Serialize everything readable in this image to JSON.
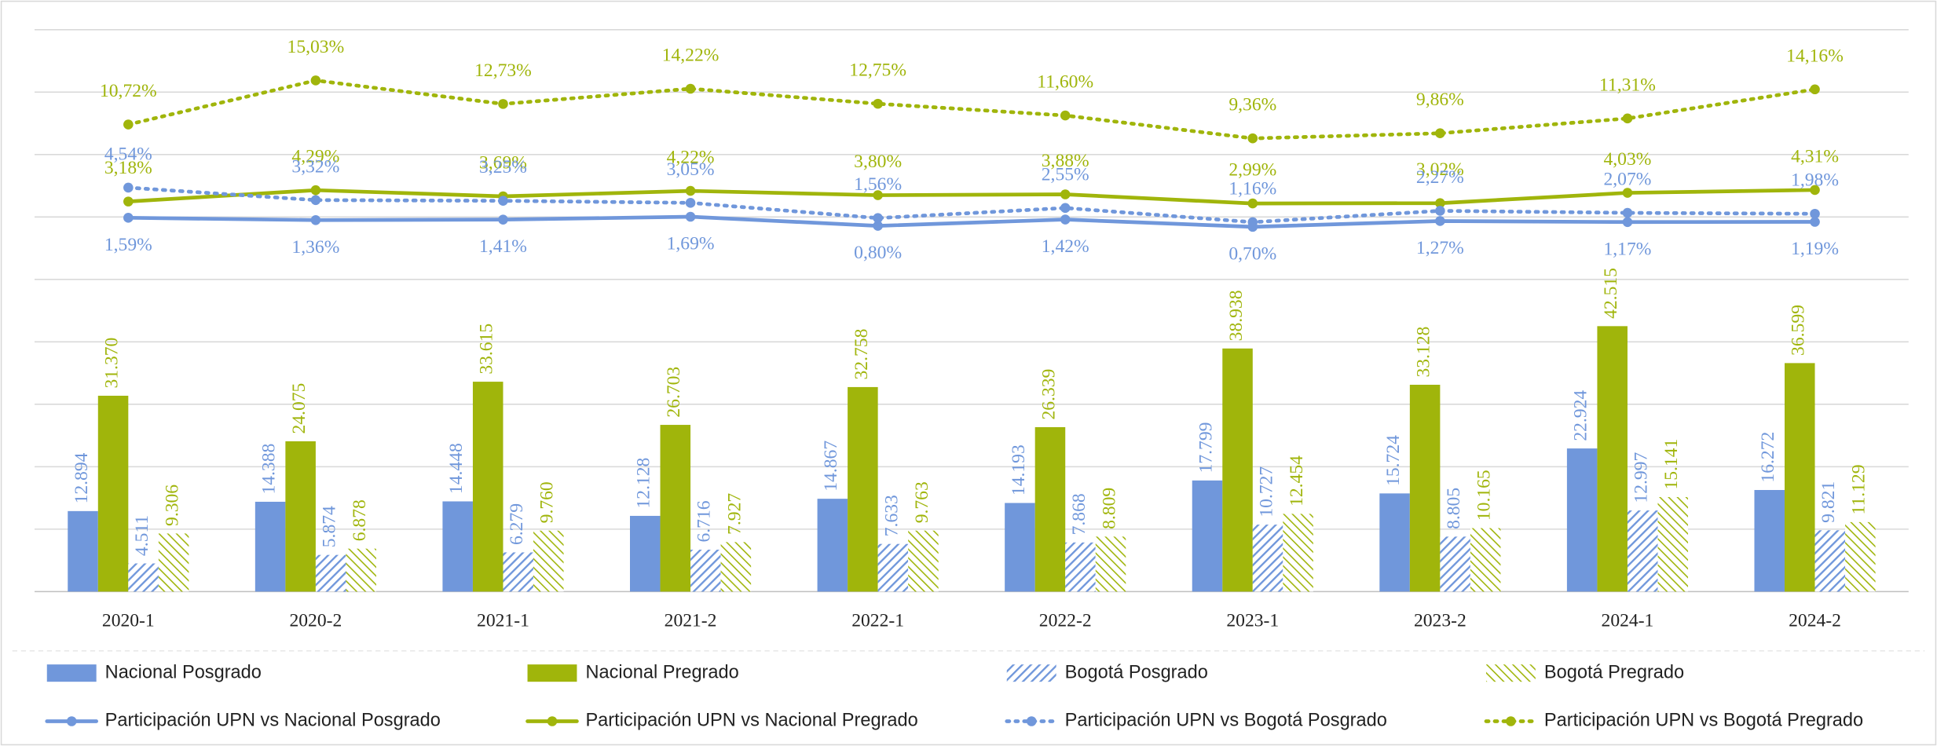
{
  "chart_data": {
    "type": "combo",
    "categories": [
      "2020-1",
      "2020-2",
      "2021-1",
      "2021-2",
      "2022-1",
      "2022-2",
      "2023-1",
      "2023-2",
      "2024-1",
      "2024-2"
    ],
    "ylim": [
      0,
      90000
    ],
    "yticks": [
      0,
      10000,
      20000,
      30000,
      40000,
      50000,
      60000,
      70000,
      80000,
      90000
    ],
    "y2lim": [
      -35,
      20
    ],
    "grid": true,
    "legend": "bottom",
    "series": [
      {
        "name": "Nacional Posgrado",
        "type": "bar",
        "color": "#7097db",
        "values": [
          12894,
          14388,
          14448,
          12128,
          14867,
          14193,
          17799,
          15724,
          22924,
          16272
        ],
        "value_labels": [
          "12.894",
          "14.388",
          "14.448",
          "12.128",
          "14.867",
          "14.193",
          "17.799",
          "15.724",
          "22.924",
          "16.272"
        ]
      },
      {
        "name": "Nacional Pregrado",
        "type": "bar",
        "color": "#a0b50b",
        "values": [
          31370,
          24075,
          33615,
          26703,
          32758,
          26339,
          38938,
          33128,
          42515,
          36599
        ],
        "value_labels": [
          "31.370",
          "24.075",
          "33.615",
          "26.703",
          "32.758",
          "26.339",
          "38.938",
          "33.128",
          "42.515",
          "36.599"
        ]
      },
      {
        "name": "Bogotá Posgrado",
        "type": "bar",
        "color": "#7097db",
        "pattern": "hatch",
        "values": [
          4511,
          5874,
          6279,
          6716,
          7633,
          7868,
          10727,
          8805,
          12997,
          9821
        ],
        "value_labels": [
          "4.511",
          "5.874",
          "6.279",
          "6.716",
          "7.633",
          "7.868",
          "10.727",
          "8.805",
          "12.997",
          "9.821"
        ]
      },
      {
        "name": "Bogotá Pregrado",
        "type": "bar",
        "color": "#a0b50b",
        "pattern": "hatch",
        "values": [
          9306,
          6878,
          9760,
          7927,
          9763,
          8809,
          12454,
          10165,
          15141,
          11129
        ],
        "value_labels": [
          "9.306",
          "6.878",
          "9.760",
          "7.927",
          "9.763",
          "8.809",
          "12.454",
          "10.165",
          "15.141",
          "11.129"
        ]
      },
      {
        "name": "Participación UPN vs Nacional Posgrado",
        "type": "line",
        "axis": "y2",
        "color": "#7097db",
        "label_position": "below",
        "values": [
          1.59,
          1.36,
          1.41,
          1.69,
          0.8,
          1.42,
          0.7,
          1.27,
          1.17,
          1.19
        ],
        "value_labels": [
          "1,59%",
          "1,36%",
          "1,41%",
          "1,69%",
          "0,80%",
          "1,42%",
          "0,70%",
          "1,27%",
          "1,17%",
          "1,19%"
        ]
      },
      {
        "name": "Participación UPN vs Nacional Pregrado",
        "type": "line",
        "axis": "y2",
        "color": "#a0b50b",
        "label_position": "above",
        "values": [
          3.18,
          4.29,
          3.69,
          4.22,
          3.8,
          3.88,
          2.99,
          3.02,
          4.03,
          4.31
        ],
        "value_labels": [
          "3,18%",
          "4,29%",
          "3,69%",
          "4,22%",
          "3,80%",
          "3,88%",
          "2,99%",
          "3,02%",
          "4,03%",
          "4,31%"
        ]
      },
      {
        "name": "Participación UPN vs Bogotá Posgrado",
        "type": "line",
        "axis": "y2",
        "color": "#7097db",
        "dash": "dotted",
        "label_position": "above",
        "values": [
          4.54,
          3.32,
          3.25,
          3.05,
          1.56,
          2.55,
          1.16,
          2.27,
          2.07,
          1.98
        ],
        "value_labels": [
          "4,54%",
          "3,32%",
          "3,25%",
          "3,05%",
          "1,56%",
          "2,55%",
          "1,16%",
          "2,27%",
          "2,07%",
          "1,98%"
        ]
      },
      {
        "name": "Participación UPN vs Bogotá Pregrado",
        "type": "line",
        "axis": "y2",
        "color": "#a0b50b",
        "dash": "dotted",
        "label_position": "above",
        "values": [
          10.72,
          15.03,
          12.73,
          14.22,
          12.75,
          11.6,
          9.36,
          9.86,
          11.31,
          14.16
        ],
        "value_labels": [
          "10,72%",
          "15,03%",
          "12,73%",
          "14,22%",
          "12,75%",
          "11,60%",
          "9,36%",
          "9,86%",
          "11,31%",
          "14,16%"
        ]
      }
    ]
  }
}
